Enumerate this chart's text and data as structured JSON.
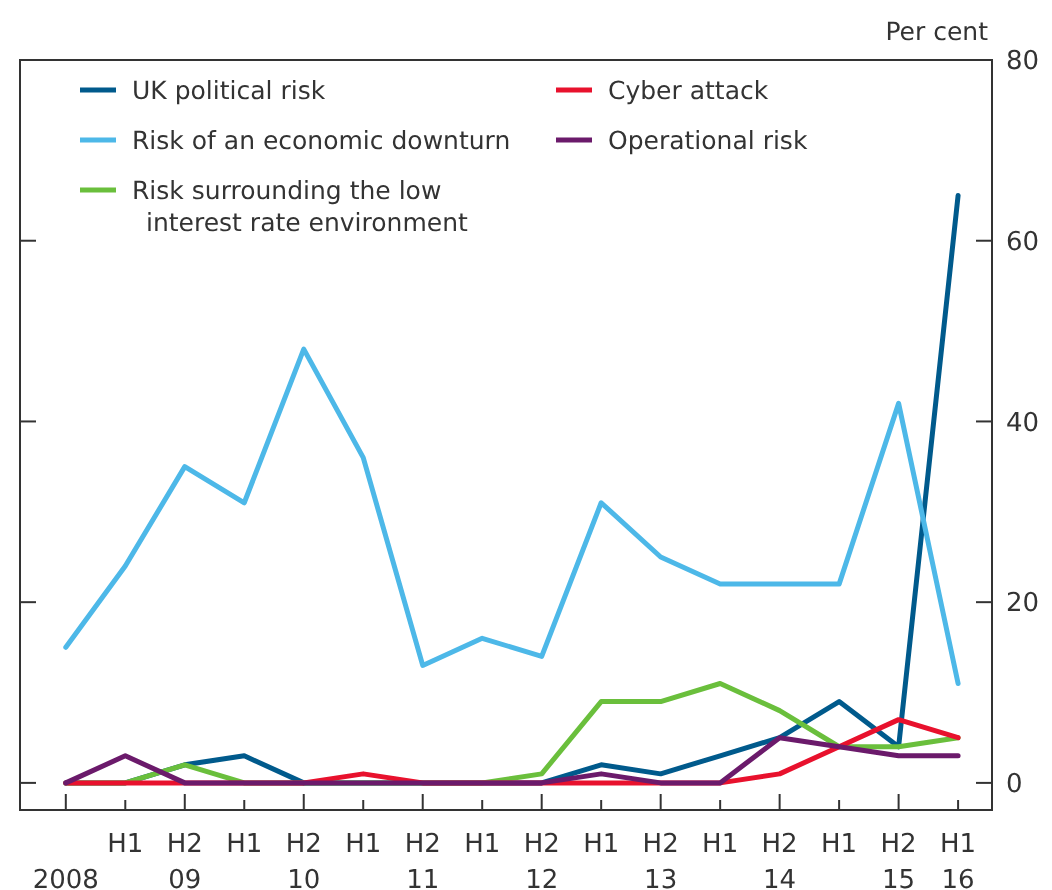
{
  "chart_data": {
    "type": "line",
    "ylabel": "Per cent",
    "categories": [
      "\n2008",
      "H1",
      "H2\n09",
      "H1",
      "H2\n10",
      "H1",
      "H2\n11",
      "H1",
      "H2\n12",
      "H1",
      "H2\n13",
      "H1",
      "H2\n14",
      "H1",
      "H2\n15",
      "H1\n16"
    ],
    "series": [
      {
        "name": "UK political risk",
        "color": "#005a8c",
        "values": [
          0,
          0,
          2,
          3,
          0,
          0,
          0,
          0,
          0,
          2,
          1,
          3,
          5,
          9,
          4,
          65
        ]
      },
      {
        "name": "Risk of an economic downturn",
        "color": "#4db8e8",
        "values": [
          15,
          24,
          35,
          31,
          48,
          36,
          13,
          16,
          14,
          31,
          25,
          22,
          22,
          22,
          42,
          11
        ]
      },
      {
        "name": "Risk surrounding the low interest rate environment",
        "color": "#6abf3c",
        "values": [
          0,
          0,
          2,
          0,
          0,
          0,
          0,
          0,
          1,
          9,
          9,
          11,
          8,
          4,
          4,
          5
        ]
      },
      {
        "name": "Cyber attack",
        "color": "#e8112d",
        "values": [
          0,
          0,
          0,
          0,
          0,
          1,
          0,
          0,
          0,
          0,
          0,
          0,
          1,
          4,
          7,
          5
        ]
      },
      {
        "name": "Operational risk",
        "color": "#6b1a6b",
        "values": [
          0,
          3,
          0,
          0,
          0,
          0,
          0,
          0,
          0,
          1,
          0,
          0,
          5,
          4,
          3,
          3
        ]
      }
    ],
    "ylim": [
      -3,
      80
    ],
    "yticks": [
      0,
      20,
      40,
      60,
      80
    ],
    "grid": false,
    "legend": "top left",
    "marker": "none",
    "line_style": "solid"
  }
}
